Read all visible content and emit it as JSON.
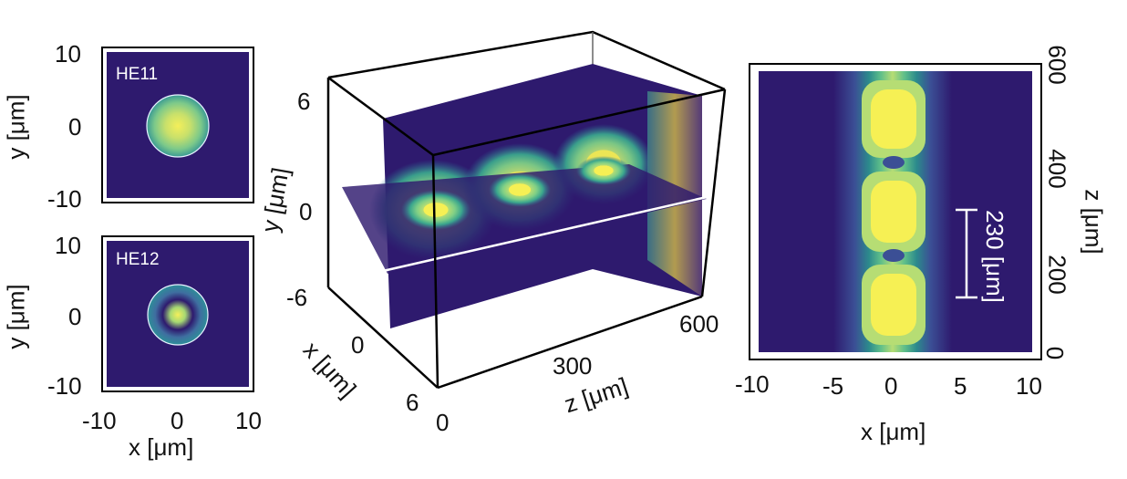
{
  "panels": {
    "he11": {
      "title": "HE11",
      "ylabel": "y [μm]",
      "yticks": [
        "10",
        "0",
        "-10"
      ]
    },
    "he12": {
      "title": "HE12",
      "ylabel": "y [μm]",
      "yticks": [
        "10",
        "0",
        "-10"
      ],
      "xticks": [
        "-10",
        "0",
        "10"
      ],
      "xlabel": "x [μm]"
    },
    "view3d": {
      "yticks": [
        "6",
        "0",
        "-6"
      ],
      "ylabel": "y [μm]",
      "xticks": [
        "0",
        "6"
      ],
      "xlabel": "x [μm]",
      "zticks": [
        "0",
        "300",
        "600"
      ],
      "zlabel": "z [μm]"
    },
    "xz": {
      "xticks": [
        "-10",
        "-5",
        "0",
        "5",
        "10"
      ],
      "xlabel": "x [μm]",
      "zticks": [
        "600",
        "400",
        "200",
        "0"
      ],
      "zlabel": "z [μm]",
      "scale_label": "230 [μm]"
    }
  },
  "colors": {
    "background": "#2e1a6e",
    "low": "#3b4f95",
    "mid": "#2c8b8c",
    "mid2": "#5fbf8a",
    "high": "#b6dd74",
    "peak": "#f6f054"
  }
}
